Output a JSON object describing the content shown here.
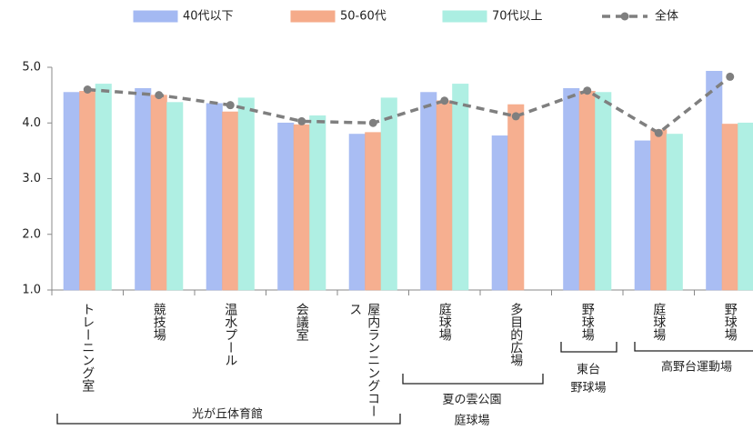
{
  "chart_data": {
    "type": "bar",
    "categories": [
      "トレーニング室",
      "競技場",
      "温水プール",
      "会議室",
      "屋内ランニングコース",
      "庭球場",
      "多目的広場",
      "野球場",
      "庭球場",
      "野球場"
    ],
    "series": [
      {
        "name": "40代以下",
        "color": "#a4b9f2",
        "values": [
          4.55,
          4.62,
          4.35,
          4.0,
          3.8,
          4.55,
          3.77,
          4.62,
          3.68,
          4.93
        ]
      },
      {
        "name": "50-60代",
        "color": "#f5ab8a",
        "values": [
          4.57,
          4.5,
          4.2,
          3.97,
          3.83,
          4.4,
          4.33,
          4.57,
          3.88,
          3.98
        ]
      },
      {
        "name": "70代以上",
        "color": "#abeee2",
        "values": [
          4.7,
          4.37,
          4.45,
          4.13,
          4.45,
          4.7,
          null,
          4.55,
          3.8,
          4.0
        ]
      },
      {
        "name": "全体",
        "type": "line",
        "color": "#7f7f7f",
        "values": [
          4.6,
          4.5,
          4.32,
          4.03,
          4.0,
          4.4,
          4.12,
          4.58,
          3.82,
          4.83
        ]
      }
    ],
    "groups": [
      {
        "label": [
          "光が丘体育館"
        ]
      },
      {
        "label": [
          "夏の雲公園",
          "庭球場"
        ]
      },
      {
        "label": [
          "東台",
          "野球場"
        ]
      },
      {
        "label": [
          "高野台運動場"
        ]
      }
    ],
    "ylim": [
      1.0,
      5.0
    ],
    "yticks": [
      {
        "value": 1,
        "label": "1.0"
      },
      {
        "value": 2,
        "label": "2.0"
      },
      {
        "value": 3,
        "label": "3.0"
      },
      {
        "value": 4,
        "label": "4.0"
      },
      {
        "value": 5,
        "label": "5.0"
      }
    ],
    "grid": false,
    "legend": "top"
  }
}
